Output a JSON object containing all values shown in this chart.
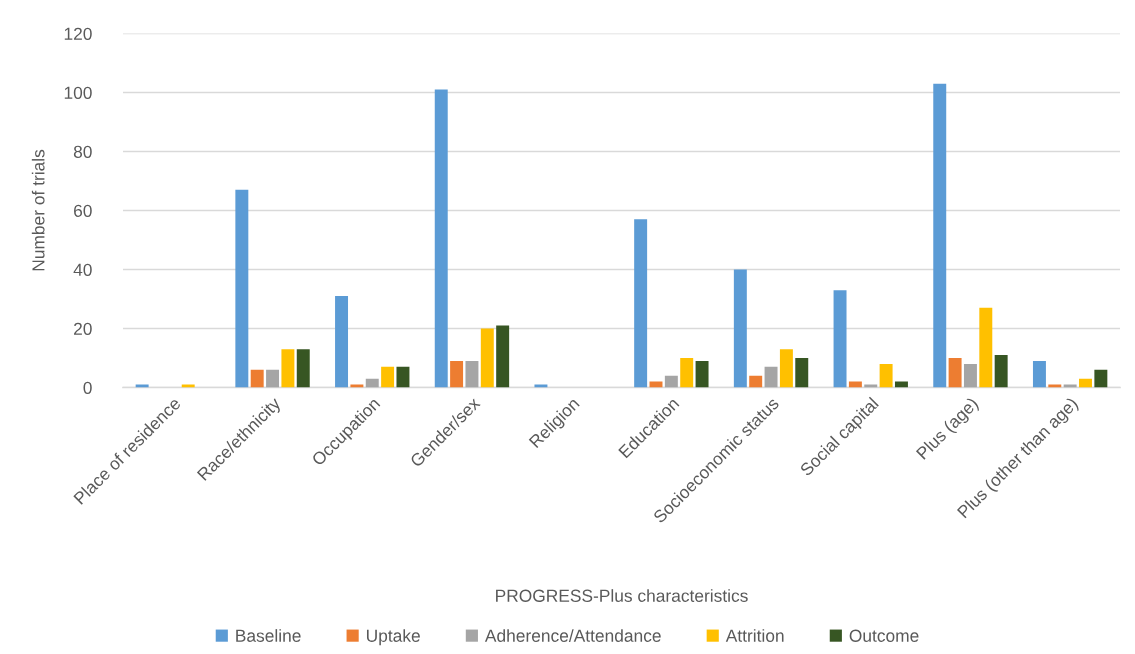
{
  "chart_data": {
    "type": "bar",
    "xlabel": "PROGRESS-Plus characteristics",
    "ylabel": "Number of trials",
    "categories": [
      "Place of residence",
      "Race/ethnicity",
      "Occupation",
      "Gender/sex",
      "Religion",
      "Education",
      "Socioeconomic status",
      "Social capital",
      "Plus (age)",
      "Plus (other than age)"
    ],
    "series": [
      {
        "name": "Baseline",
        "color": "#5b9bd5",
        "values": [
          1,
          67,
          31,
          101,
          1,
          57,
          40,
          33,
          103,
          9
        ]
      },
      {
        "name": "Uptake",
        "color": "#ed7d31",
        "values": [
          0,
          6,
          1,
          9,
          0,
          2,
          4,
          2,
          10,
          1
        ]
      },
      {
        "name": "Adherence/Attendance",
        "color": "#a5a5a5",
        "values": [
          0,
          6,
          3,
          9,
          0,
          4,
          7,
          1,
          8,
          1
        ]
      },
      {
        "name": "Attrition",
        "color": "#ffc000",
        "values": [
          1,
          13,
          7,
          20,
          0,
          10,
          13,
          8,
          27,
          3
        ]
      },
      {
        "name": "Outcome",
        "color": "#375623",
        "values": [
          0,
          13,
          7,
          21,
          0,
          9,
          10,
          2,
          11,
          6
        ]
      }
    ],
    "ylim": [
      0,
      120
    ],
    "yticks": [
      0,
      20,
      40,
      60,
      80,
      100,
      120
    ],
    "grid": "y",
    "legend": "bottom"
  }
}
